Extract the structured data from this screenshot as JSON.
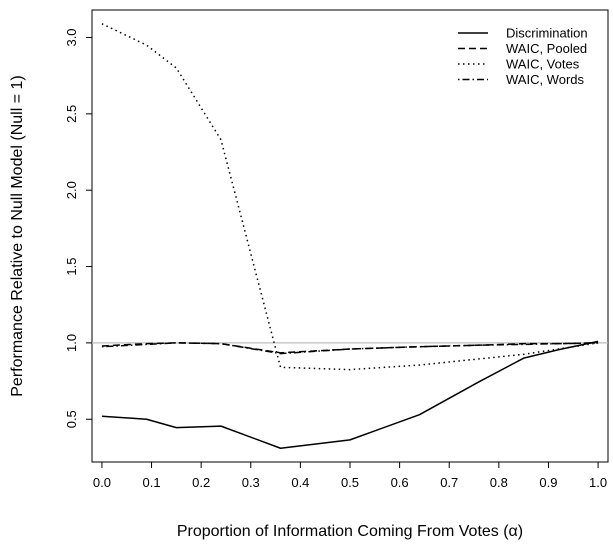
{
  "chart_data": {
    "type": "line",
    "xlabel": "Proportion of Information Coming From Votes (α)",
    "ylabel": "Performance Relative to Null Model (Null = 1)",
    "xlim": [
      -0.02,
      1.02
    ],
    "ylim": [
      0.22,
      3.18
    ],
    "x_ticks": [
      0.0,
      0.1,
      0.2,
      0.3,
      0.4,
      0.5,
      0.6,
      0.7,
      0.8,
      0.9,
      1.0
    ],
    "x_tick_labels": [
      "0.0",
      "0.1",
      "0.2",
      "0.3",
      "0.4",
      "0.5",
      "0.6",
      "0.7",
      "0.8",
      "0.9",
      "1.0"
    ],
    "y_ticks": [
      0.5,
      1.0,
      1.5,
      2.0,
      2.5,
      3.0
    ],
    "y_tick_labels": [
      "0.5",
      "1.0",
      "1.5",
      "2.0",
      "2.5",
      "3.0"
    ],
    "reference_line": {
      "y": 1.0,
      "color": "#bebebe"
    },
    "grid": false,
    "legend_position": "top-right",
    "series": [
      {
        "name": "Discrimination",
        "style": "solid",
        "x": [
          0.0,
          0.09,
          0.15,
          0.24,
          0.36,
          0.5,
          0.64,
          0.76,
          0.85,
          0.92,
          1.0
        ],
        "y": [
          0.52,
          0.5,
          0.445,
          0.455,
          0.31,
          0.365,
          0.53,
          0.745,
          0.9,
          0.955,
          1.01
        ]
      },
      {
        "name": "WAIC, Pooled",
        "style": "dashed",
        "x": [
          0.0,
          0.09,
          0.15,
          0.24,
          0.36,
          0.5,
          0.64,
          0.76,
          0.85,
          0.92,
          1.0
        ],
        "y": [
          0.98,
          0.995,
          1.0,
          0.995,
          0.935,
          0.96,
          0.975,
          0.985,
          0.995,
          0.995,
          1.0
        ]
      },
      {
        "name": "WAIC, Votes",
        "style": "dotted",
        "x": [
          0.0,
          0.09,
          0.15,
          0.24,
          0.36,
          0.5,
          0.64,
          0.76,
          0.85,
          0.92,
          1.0
        ],
        "y": [
          3.09,
          2.95,
          2.8,
          2.33,
          0.84,
          0.825,
          0.855,
          0.895,
          0.925,
          0.96,
          1.0
        ]
      },
      {
        "name": "WAIC, Words",
        "style": "dashdot",
        "x": [
          0.0,
          0.09,
          0.15,
          0.24,
          0.36,
          0.5,
          0.64,
          0.76,
          0.85,
          0.92,
          1.0
        ],
        "y": [
          0.975,
          0.99,
          1.0,
          0.995,
          0.93,
          0.96,
          0.975,
          0.985,
          0.99,
          0.995,
          1.0
        ]
      }
    ]
  }
}
